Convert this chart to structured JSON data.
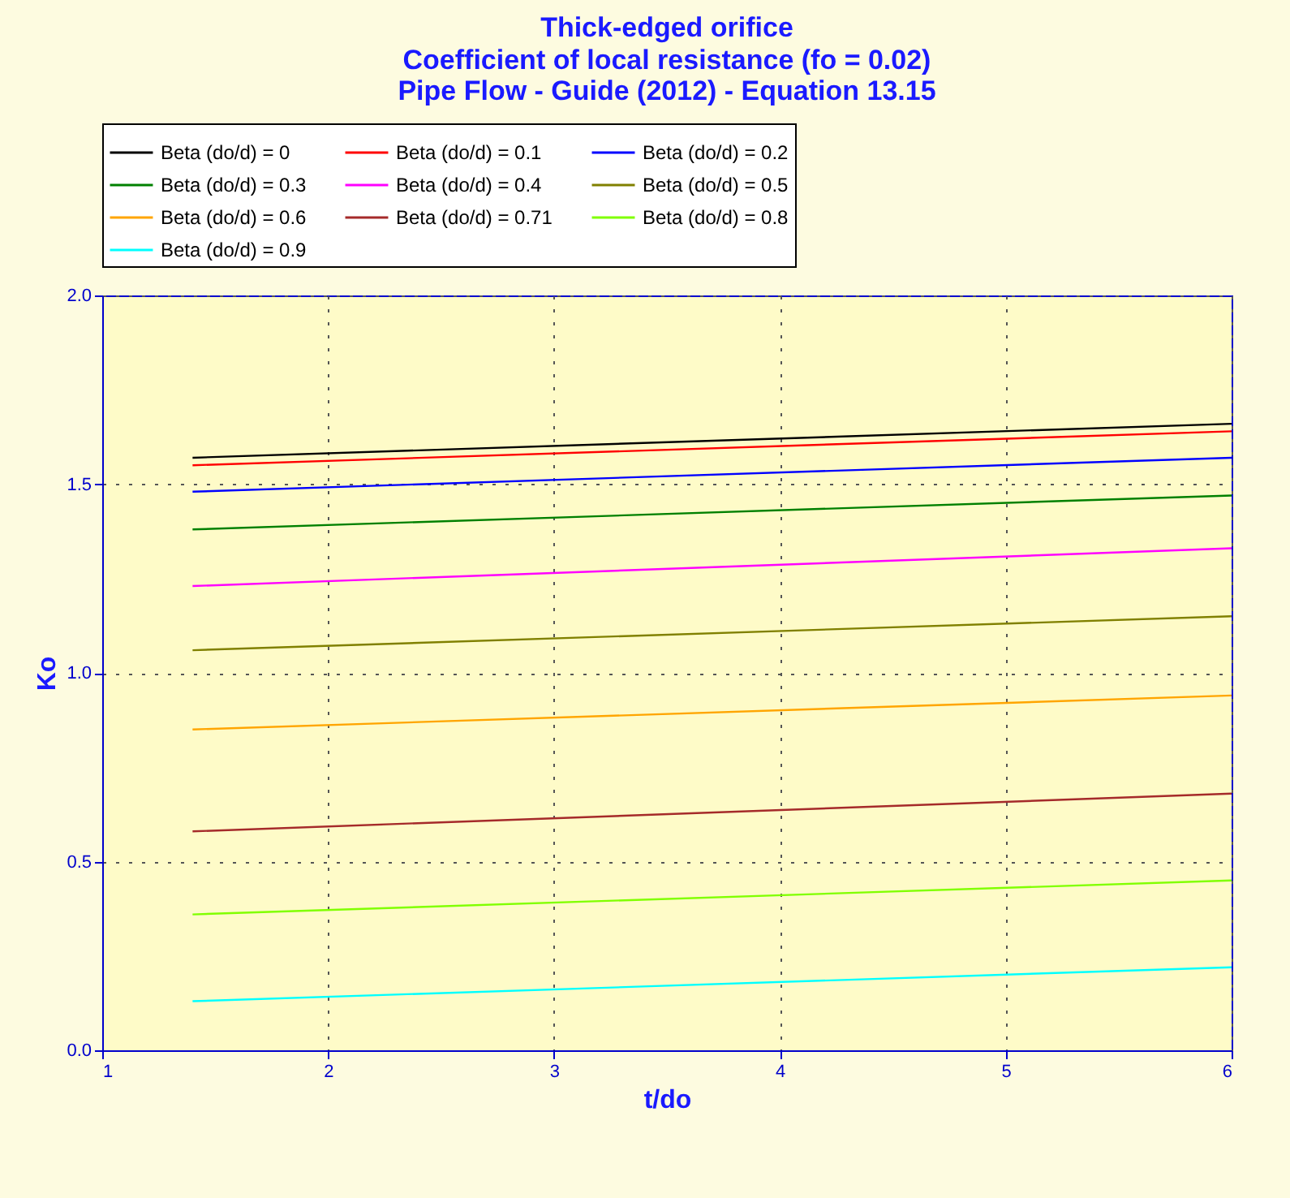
{
  "chart_data": {
    "type": "line",
    "title": "Thick-edged orifice",
    "subtitle": "Coefficient of local resistance (fo = 0.02)\nPipe Flow - Guide (2012) - Equation 13.15",
    "xlabel": "t/do",
    "ylabel": "Ko",
    "x": [
      1.4,
      6
    ],
    "series": [
      {
        "name": "Beta (do/d) = 0",
        "color": "#000000",
        "values": [
          1.57,
          1.66
        ]
      },
      {
        "name": "Beta (do/d) = 0.1",
        "color": "#ff0000",
        "values": [
          1.55,
          1.64
        ]
      },
      {
        "name": "Beta (do/d) = 0.2",
        "color": "#0000ff",
        "values": [
          1.48,
          1.57
        ]
      },
      {
        "name": "Beta (do/d) = 0.3",
        "color": "#008000",
        "values": [
          1.38,
          1.47
        ]
      },
      {
        "name": "Beta (do/d) = 0.4",
        "color": "#ff00ff",
        "values": [
          1.23,
          1.33
        ]
      },
      {
        "name": "Beta (do/d) = 0.5",
        "color": "#808000",
        "values": [
          1.06,
          1.15
        ]
      },
      {
        "name": "Beta (do/d) = 0.6",
        "color": "#ffa500",
        "values": [
          0.85,
          0.94
        ]
      },
      {
        "name": "Beta (do/d) = 0.71",
        "color": "#a52a2a",
        "values": [
          0.58,
          0.68
        ]
      },
      {
        "name": "Beta (do/d) = 0.8",
        "color": "#80ff00",
        "values": [
          0.36,
          0.45
        ]
      },
      {
        "name": "Beta (do/d) = 0.9",
        "color": "#00ffff",
        "values": [
          0.13,
          0.22
        ]
      }
    ],
    "xlim": [
      1,
      6
    ],
    "xticks": [
      1,
      2,
      3,
      4,
      5,
      6
    ],
    "ylim": [
      0,
      2
    ],
    "yticks": [
      {
        "value": 0,
        "label": "0.0"
      },
      {
        "value": 0.5,
        "label": "0.5"
      },
      {
        "value": 1,
        "label": "1.0"
      },
      {
        "value": 1.5,
        "label": "1.5"
      },
      {
        "value": 2,
        "label": "2.0"
      }
    ],
    "grid": true,
    "legend": "top",
    "marker": "none",
    "line_style": "solid"
  }
}
